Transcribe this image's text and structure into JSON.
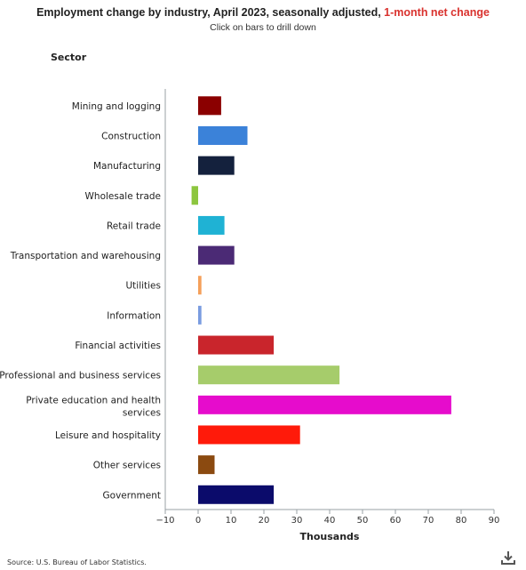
{
  "header": {
    "title_main": "Employment change by industry, April 2023, seasonally adjusted, ",
    "title_highlight": "1-month net change",
    "subtitle": "Click on bars to drill down"
  },
  "sector_header": "Sector",
  "source": "Source: U.S. Bureau of Labor Statistics.",
  "download_icon": "download-icon",
  "chart_data": {
    "type": "bar",
    "orientation": "horizontal",
    "title": "Employment change by industry, April 2023, seasonally adjusted, 1-month net change",
    "subtitle": "Click on bars to drill down",
    "xlabel": "Thousands",
    "ylabel": "Sector",
    "xlim": [
      -10,
      90
    ],
    "xticks": [
      "−10",
      "0",
      "10",
      "20",
      "30",
      "40",
      "50",
      "60",
      "70",
      "80",
      "90"
    ],
    "grid": false,
    "categories": [
      "Mining and logging",
      "Construction",
      "Manufacturing",
      "Wholesale trade",
      "Retail trade",
      "Transportation and warehousing",
      "Utilities",
      "Information",
      "Financial activities",
      "Professional and business services",
      "Private education and health services",
      "Leisure and hospitality",
      "Other services",
      "Government"
    ],
    "values": [
      7,
      15,
      11,
      -2,
      8,
      11,
      1,
      1,
      23,
      43,
      77,
      31,
      5,
      23
    ],
    "colors": [
      "#8b0000",
      "#3b82d9",
      "#14213d",
      "#8dc63f",
      "#1fb2d4",
      "#4b2a75",
      "#f5a05a",
      "#7a9ce0",
      "#c9252c",
      "#a6cc6b",
      "#e60ccc",
      "#ff1a0a",
      "#8b4a10",
      "#0b0b6b"
    ]
  }
}
